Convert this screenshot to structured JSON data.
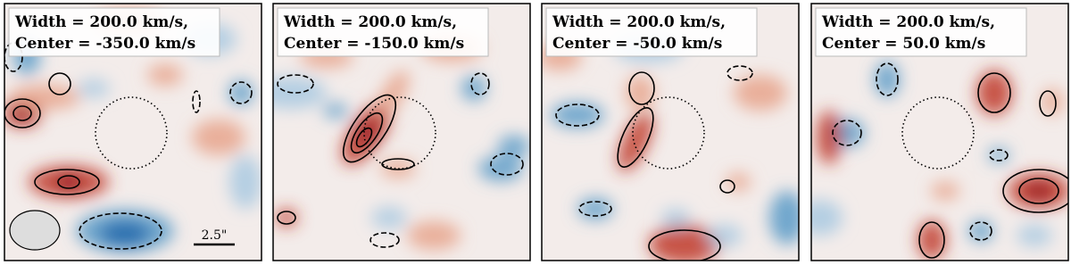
{
  "panels": [
    {
      "width_label": "Width = 200.0 km/s,",
      "center_label": "Center = -350.0 km/s"
    },
    {
      "width_label": "Width = 200.0 km/s,",
      "center_label": "Center = -150.0 km/s"
    },
    {
      "width_label": "Width = 200.0 km/s,",
      "center_label": "Center = -50.0 km/s"
    },
    {
      "width_label": "Width = 200.0 km/s,",
      "center_label": "Center = 50.0 km/s"
    }
  ],
  "scale_bar": {
    "label": "2.5\""
  }
}
